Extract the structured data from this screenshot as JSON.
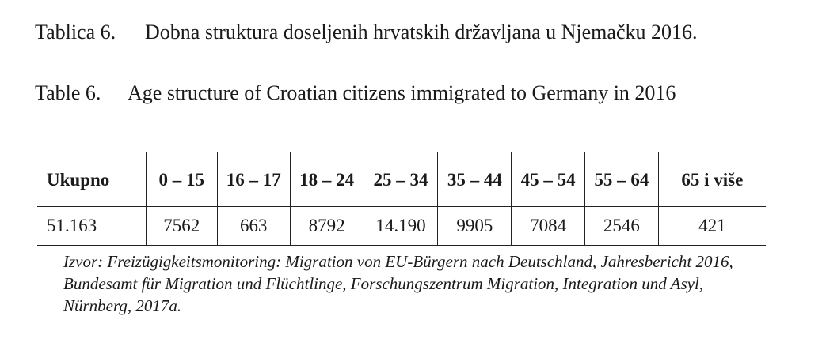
{
  "caption_hr": {
    "label": "Tablica 6.",
    "text": "Dobna struktura doseljenih hrvatskih državljana u Njemačku 2016."
  },
  "caption_en": {
    "label": "Table 6.",
    "text": "Age structure of Croatian citizens immigrated to Germany in 2016"
  },
  "table": {
    "headers": [
      "Ukupno",
      "0 – 15",
      "16 – 17",
      "18 – 24",
      "25 – 34",
      "35 – 44",
      "45 – 54",
      "55 – 64",
      "65 i više"
    ],
    "rows": [
      [
        "51.163",
        "7562",
        "663",
        "8792",
        "14.190",
        "9905",
        "7084",
        "2546",
        "421"
      ]
    ]
  },
  "source": "Izvor: Freizügigkeitsmonitoring: Migration von EU-Bürgern nach Deutschland, Jahresbericht 2016, Bundesamt für Migration und Flüchtlinge, Forschungszentrum Migration, Integration und Asyl, Nürnberg, 2017a."
}
